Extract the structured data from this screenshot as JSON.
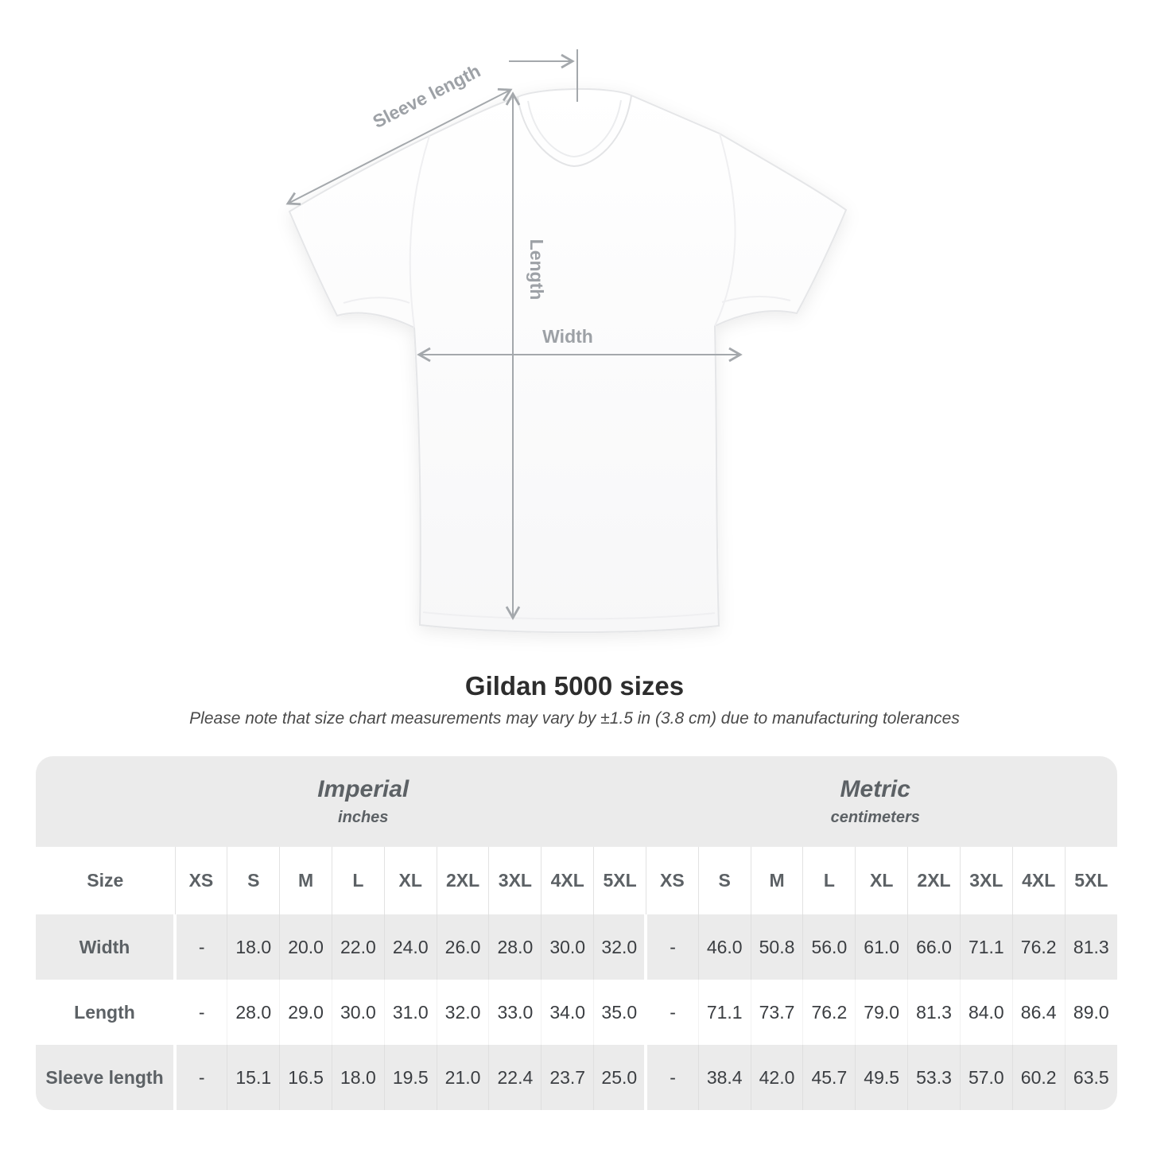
{
  "diagram": {
    "labels": {
      "sleeve_length": "Sleeve length",
      "length": "Length",
      "width": "Width"
    },
    "annotation_color": "#a4a8ac"
  },
  "chart_data": {
    "type": "table",
    "title": "Gildan 5000 sizes",
    "subtitle": "Please note that size chart measurements may vary by ±1.5 in (3.8 cm) due to manufacturing tolerances",
    "corner_header": "Size",
    "groups": [
      {
        "label": "Imperial",
        "unit": "inches",
        "sizes": [
          "XS",
          "S",
          "M",
          "L",
          "XL",
          "2XL",
          "3XL",
          "4XL",
          "5XL"
        ]
      },
      {
        "label": "Metric",
        "unit": "centimeters",
        "sizes": [
          "XS",
          "S",
          "M",
          "L",
          "XL",
          "2XL",
          "3XL",
          "4XL",
          "5XL"
        ]
      }
    ],
    "rows": [
      {
        "label": "Width",
        "imperial": [
          "-",
          "18.0",
          "20.0",
          "22.0",
          "24.0",
          "26.0",
          "28.0",
          "30.0",
          "32.0"
        ],
        "metric": [
          "-",
          "46.0",
          "50.8",
          "56.0",
          "61.0",
          "66.0",
          "71.1",
          "76.2",
          "81.3"
        ]
      },
      {
        "label": "Length",
        "imperial": [
          "-",
          "28.0",
          "29.0",
          "30.0",
          "31.0",
          "32.0",
          "33.0",
          "34.0",
          "35.0"
        ],
        "metric": [
          "-",
          "71.1",
          "73.7",
          "76.2",
          "79.0",
          "81.3",
          "84.0",
          "86.4",
          "89.0"
        ]
      },
      {
        "label": "Sleeve length",
        "imperial": [
          "-",
          "15.1",
          "16.5",
          "18.0",
          "19.5",
          "21.0",
          "22.4",
          "23.7",
          "25.0"
        ],
        "metric": [
          "-",
          "38.4",
          "42.0",
          "45.7",
          "49.5",
          "53.3",
          "57.0",
          "60.2",
          "63.5"
        ]
      }
    ]
  },
  "colors": {
    "row_shade": "#ebebeb",
    "number_text": "#3b3e42",
    "label_text": "#5c6165",
    "title_text": "#2d2d2d",
    "annotation": "#a4a8ac"
  }
}
